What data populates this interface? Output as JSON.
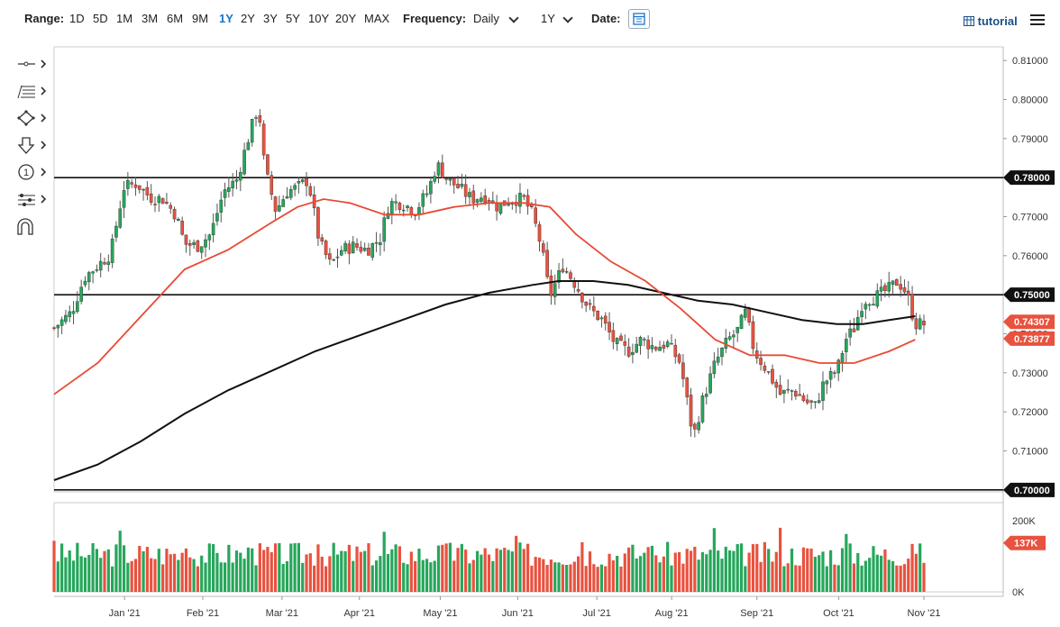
{
  "toolbar": {
    "range_label": "Range:",
    "ranges": [
      "1D",
      "5D",
      "1M",
      "3M",
      "6M",
      "9M",
      "1Y",
      "2Y",
      "3Y",
      "5Y",
      "10Y",
      "20Y",
      "MAX"
    ],
    "active_range": "1Y",
    "frequency_label": "Frequency:",
    "frequency_value": "Daily",
    "period_value": "1Y",
    "date_label": "Date:",
    "tutorial_label": "tutorial"
  },
  "icons": {
    "tools": [
      "line-tool-icon",
      "fibonacci-tool-icon",
      "shape-tool-icon",
      "arrow-down-tool-icon",
      "number-marker-icon",
      "measure-tool-icon",
      "magnet-icon"
    ],
    "calendar": "calendar-icon",
    "tutorial": "grid-icon",
    "menu": "hamburger-menu-icon"
  },
  "colors": {
    "up_candle": "#26a65b",
    "down_candle": "#e8523f",
    "ma_fast": "#e84a35",
    "ma_slow": "#111111",
    "active_range": "#1a73c8"
  },
  "chart_data": {
    "type": "candlestick",
    "price_axis_ticks": [
      "0.81000",
      "0.80000",
      "0.79000",
      "0.78000",
      "0.77000",
      "0.76000",
      "0.75000",
      "0.74000",
      "0.73000",
      "0.72000",
      "0.71000",
      "0.70000"
    ],
    "ylim": [
      0.6995,
      0.8135
    ],
    "x_labels": [
      "Jan '21",
      "Feb '21",
      "Mar '21",
      "Apr '21",
      "May '21",
      "Jun '21",
      "Jul '21",
      "Aug '21",
      "Sep '21",
      "Oct '21",
      "Nov '21"
    ],
    "x_label_positions": [
      0.081,
      0.171,
      0.262,
      0.351,
      0.444,
      0.533,
      0.624,
      0.71,
      0.808,
      0.902,
      1.0
    ],
    "horizontal_levels": [
      {
        "value": 0.78,
        "label": "0.78000"
      },
      {
        "value": 0.75,
        "label": "0.75000"
      },
      {
        "value": 0.7,
        "label": "0.70000"
      }
    ],
    "last_price_tag": "0.74307",
    "ma_tag": "0.73877",
    "price_path": [
      [
        0,
        0.7415
      ],
      [
        0.02,
        0.7455
      ],
      [
        0.035,
        0.7545
      ],
      [
        0.05,
        0.7575
      ],
      [
        0.065,
        0.7605
      ],
      [
        0.08,
        0.7775
      ],
      [
        0.095,
        0.7785
      ],
      [
        0.11,
        0.775
      ],
      [
        0.125,
        0.7745
      ],
      [
        0.14,
        0.7705
      ],
      [
        0.15,
        0.763
      ],
      [
        0.165,
        0.7625
      ],
      [
        0.18,
        0.7655
      ],
      [
        0.195,
        0.7765
      ],
      [
        0.21,
        0.7795
      ],
      [
        0.225,
        0.7915
      ],
      [
        0.235,
        0.7985
      ],
      [
        0.242,
        0.7825
      ],
      [
        0.255,
        0.7715
      ],
      [
        0.268,
        0.7765
      ],
      [
        0.28,
        0.7775
      ],
      [
        0.292,
        0.7795
      ],
      [
        0.305,
        0.7635
      ],
      [
        0.318,
        0.7575
      ],
      [
        0.33,
        0.7615
      ],
      [
        0.345,
        0.7625
      ],
      [
        0.36,
        0.7615
      ],
      [
        0.375,
        0.7645
      ],
      [
        0.385,
        0.7735
      ],
      [
        0.4,
        0.7735
      ],
      [
        0.415,
        0.7715
      ],
      [
        0.43,
        0.7765
      ],
      [
        0.44,
        0.7835
      ],
      [
        0.452,
        0.7795
      ],
      [
        0.465,
        0.7775
      ],
      [
        0.48,
        0.7745
      ],
      [
        0.495,
        0.7755
      ],
      [
        0.51,
        0.7725
      ],
      [
        0.525,
        0.7745
      ],
      [
        0.54,
        0.7745
      ],
      [
        0.55,
        0.7705
      ],
      [
        0.56,
        0.7625
      ],
      [
        0.57,
        0.7495
      ],
      [
        0.585,
        0.7575
      ],
      [
        0.6,
        0.7525
      ],
      [
        0.615,
        0.7465
      ],
      [
        0.63,
        0.7435
      ],
      [
        0.645,
        0.7375
      ],
      [
        0.66,
        0.7355
      ],
      [
        0.675,
        0.7385
      ],
      [
        0.69,
        0.7365
      ],
      [
        0.705,
        0.7375
      ],
      [
        0.72,
        0.7325
      ],
      [
        0.735,
        0.7135
      ],
      [
        0.745,
        0.7225
      ],
      [
        0.76,
        0.7325
      ],
      [
        0.775,
        0.7385
      ],
      [
        0.785,
        0.7405
      ],
      [
        0.795,
        0.7455
      ],
      [
        0.805,
        0.7355
      ],
      [
        0.82,
        0.7305
      ],
      [
        0.835,
        0.7245
      ],
      [
        0.85,
        0.7255
      ],
      [
        0.865,
        0.7225
      ],
      [
        0.875,
        0.7215
      ],
      [
        0.885,
        0.7275
      ],
      [
        0.9,
        0.7305
      ],
      [
        0.91,
        0.7385
      ],
      [
        0.92,
        0.7415
      ],
      [
        0.93,
        0.7485
      ],
      [
        0.945,
        0.7495
      ],
      [
        0.96,
        0.7515
      ],
      [
        0.97,
        0.7535
      ],
      [
        0.98,
        0.7505
      ],
      [
        0.99,
        0.7425
      ]
    ],
    "ma_fast_path": [
      [
        0,
        0.7245
      ],
      [
        0.05,
        0.7325
      ],
      [
        0.1,
        0.7445
      ],
      [
        0.15,
        0.7565
      ],
      [
        0.2,
        0.7615
      ],
      [
        0.25,
        0.7685
      ],
      [
        0.28,
        0.7725
      ],
      [
        0.31,
        0.7745
      ],
      [
        0.34,
        0.7735
      ],
      [
        0.38,
        0.7705
      ],
      [
        0.42,
        0.7705
      ],
      [
        0.46,
        0.7725
      ],
      [
        0.5,
        0.7735
      ],
      [
        0.54,
        0.7735
      ],
      [
        0.57,
        0.7725
      ],
      [
        0.6,
        0.7655
      ],
      [
        0.64,
        0.7585
      ],
      [
        0.68,
        0.7535
      ],
      [
        0.72,
        0.7465
      ],
      [
        0.76,
        0.7385
      ],
      [
        0.8,
        0.7345
      ],
      [
        0.84,
        0.7345
      ],
      [
        0.88,
        0.7325
      ],
      [
        0.92,
        0.7325
      ],
      [
        0.96,
        0.7355
      ],
      [
        0.99,
        0.7385
      ]
    ],
    "ma_slow_path": [
      [
        0,
        0.7025
      ],
      [
        0.05,
        0.7065
      ],
      [
        0.1,
        0.7125
      ],
      [
        0.15,
        0.7195
      ],
      [
        0.2,
        0.7255
      ],
      [
        0.25,
        0.7305
      ],
      [
        0.3,
        0.7355
      ],
      [
        0.35,
        0.7395
      ],
      [
        0.4,
        0.7435
      ],
      [
        0.45,
        0.7475
      ],
      [
        0.5,
        0.7505
      ],
      [
        0.55,
        0.7525
      ],
      [
        0.58,
        0.7535
      ],
      [
        0.62,
        0.7535
      ],
      [
        0.66,
        0.7525
      ],
      [
        0.7,
        0.7505
      ],
      [
        0.74,
        0.7485
      ],
      [
        0.78,
        0.7475
      ],
      [
        0.82,
        0.7455
      ],
      [
        0.86,
        0.7435
      ],
      [
        0.9,
        0.7425
      ],
      [
        0.93,
        0.7425
      ],
      [
        0.96,
        0.7435
      ],
      [
        0.99,
        0.7445
      ]
    ],
    "volume_axis_ticks": [
      "200K",
      "0K"
    ],
    "volume_last_tag": "137K",
    "volume_max": 250000
  }
}
